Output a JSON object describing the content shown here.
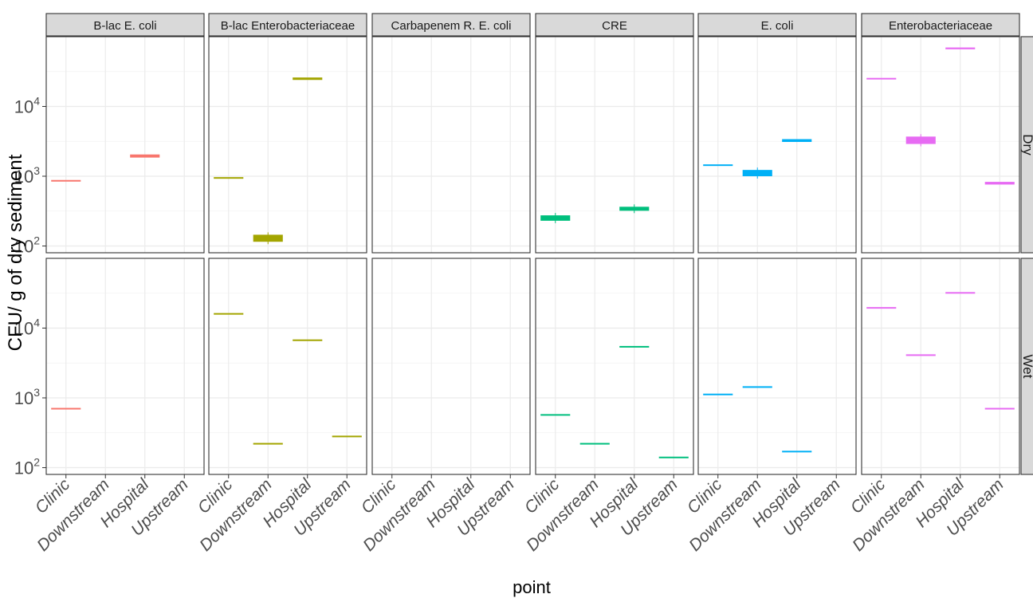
{
  "chart_data": {
    "type": "boxplot",
    "facet_columns": [
      "B-lac E. coli",
      "B-lac Enterobacteriaceae",
      "Carbapenem R. E. coli",
      "CRE",
      "E. coli",
      "Enterobacteriaceae"
    ],
    "facet_rows": [
      "Dry",
      "Wet"
    ],
    "categories": [
      "Clinic",
      "Downstream",
      "Hospital",
      "Upstream"
    ],
    "xlabel": "point",
    "ylabel": "CFU/ g of dry sediment",
    "y_scale": "log10",
    "ylim": [
      80,
      100000
    ],
    "y_ticks": [
      {
        "value": 100,
        "base": "10",
        "exp": "2"
      },
      {
        "value": 1000,
        "base": "10",
        "exp": "3"
      },
      {
        "value": 10000,
        "base": "10",
        "exp": "4"
      }
    ],
    "grid": true,
    "legend": "none",
    "colors": {
      "B-lac E. coli": "#F8766D",
      "B-lac Enterobacteriaceae": "#A3A500",
      "Carbapenem R. E. coli": "#00BF7D",
      "CRE": "#00BF7D",
      "E. coli": "#00B0F6",
      "Enterobacteriaceae": "#E76BF3"
    },
    "panels": [
      {
        "column": "B-lac E. coli",
        "row": "Dry",
        "boxes": [
          {
            "x": "Clinic",
            "q1": 850,
            "median": 860,
            "q3": 870
          },
          {
            "x": "Hospital",
            "q1": 1850,
            "median": 1950,
            "q3": 2050
          }
        ]
      },
      {
        "column": "B-lac Enterobacteriaceae",
        "row": "Dry",
        "boxes": [
          {
            "x": "Clinic",
            "q1": 930,
            "median": 945,
            "q3": 960
          },
          {
            "x": "Downstream",
            "q1": 115,
            "median": 130,
            "q3": 145
          },
          {
            "x": "Hospital",
            "q1": 24000,
            "median": 25000,
            "q3": 26000
          }
        ]
      },
      {
        "column": "Carbapenem R. E. coli",
        "row": "Dry",
        "boxes": []
      },
      {
        "column": "CRE",
        "row": "Dry",
        "boxes": [
          {
            "x": "Clinic",
            "q1": 230,
            "median": 250,
            "q3": 275
          },
          {
            "x": "Hospital",
            "q1": 320,
            "median": 340,
            "q3": 365
          }
        ]
      },
      {
        "column": "E. coli",
        "row": "Dry",
        "boxes": [
          {
            "x": "Clinic",
            "q1": 1420,
            "median": 1440,
            "q3": 1460
          },
          {
            "x": "Downstream",
            "q1": 1000,
            "median": 1100,
            "q3": 1230
          },
          {
            "x": "Hospital",
            "q1": 3100,
            "median": 3250,
            "q3": 3400
          }
        ]
      },
      {
        "column": "Enterobacteriaceae",
        "row": "Dry",
        "boxes": [
          {
            "x": "Clinic",
            "q1": 24500,
            "median": 25000,
            "q3": 25500
          },
          {
            "x": "Downstream",
            "q1": 2900,
            "median": 3250,
            "q3": 3700
          },
          {
            "x": "Hospital",
            "q1": 66000,
            "median": 68000,
            "q3": 70000
          },
          {
            "x": "Upstream",
            "q1": 760,
            "median": 790,
            "q3": 830
          }
        ]
      },
      {
        "column": "B-lac E. coli",
        "row": "Wet",
        "boxes": [
          {
            "x": "Clinic",
            "q1": 700,
            "median": 700,
            "q3": 700
          }
        ]
      },
      {
        "column": "B-lac Enterobacteriaceae",
        "row": "Wet",
        "boxes": [
          {
            "x": "Clinic",
            "q1": 16000,
            "median": 16000,
            "q3": 16000
          },
          {
            "x": "Downstream",
            "q1": 220,
            "median": 220,
            "q3": 220
          },
          {
            "x": "Hospital",
            "q1": 6700,
            "median": 6700,
            "q3": 6700
          },
          {
            "x": "Upstream",
            "q1": 280,
            "median": 280,
            "q3": 280
          }
        ]
      },
      {
        "column": "Carbapenem R. E. coli",
        "row": "Wet",
        "boxes": []
      },
      {
        "column": "CRE",
        "row": "Wet",
        "boxes": [
          {
            "x": "Clinic",
            "q1": 570,
            "median": 570,
            "q3": 570
          },
          {
            "x": "Downstream",
            "q1": 220,
            "median": 220,
            "q3": 220
          },
          {
            "x": "Hospital",
            "q1": 5400,
            "median": 5400,
            "q3": 5400
          },
          {
            "x": "Upstream",
            "q1": 140,
            "median": 140,
            "q3": 140
          }
        ]
      },
      {
        "column": "E. coli",
        "row": "Wet",
        "boxes": [
          {
            "x": "Clinic",
            "q1": 1120,
            "median": 1120,
            "q3": 1120
          },
          {
            "x": "Downstream",
            "q1": 1430,
            "median": 1430,
            "q3": 1430
          },
          {
            "x": "Hospital",
            "q1": 170,
            "median": 170,
            "q3": 170
          }
        ]
      },
      {
        "column": "Enterobacteriaceae",
        "row": "Wet",
        "boxes": [
          {
            "x": "Clinic",
            "q1": 19500,
            "median": 19500,
            "q3": 19500
          },
          {
            "x": "Downstream",
            "q1": 4100,
            "median": 4100,
            "q3": 4100
          },
          {
            "x": "Hospital",
            "q1": 32000,
            "median": 32000,
            "q3": 32000
          },
          {
            "x": "Upstream",
            "q1": 700,
            "median": 700,
            "q3": 700
          }
        ]
      }
    ]
  }
}
